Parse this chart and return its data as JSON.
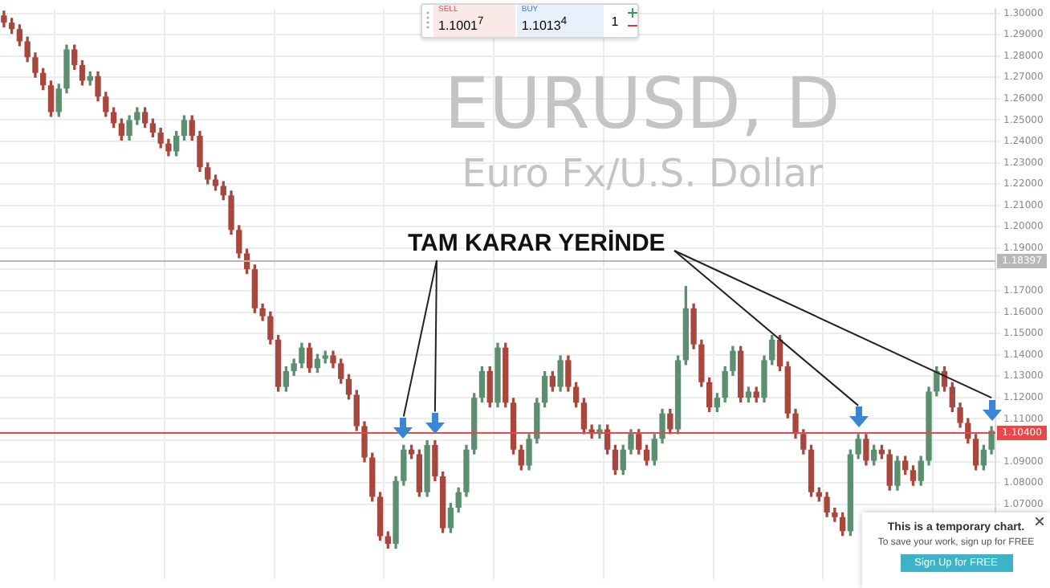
{
  "chart_data": {
    "type": "candlestick",
    "title": "EURUSD, D",
    "subtitle": "Euro Fx/U.S. Dollar",
    "annotations": [
      "TAM KARAR YERİNDE",
      "SELL",
      "1.1001$^{7}$",
      "BUY",
      "1.1013$^{4}$",
      "1",
      "This is a temporary chart.",
      "To save your work, sign up for FREE",
      "Sign Up for FREE"
    ],
    "categories": [
      null,
      null,
      null,
      null,
      null,
      null,
      null,
      null,
      null,
      null,
      null,
      null,
      null,
      null,
      null,
      null,
      null,
      null,
      null,
      null,
      null,
      null,
      null,
      null,
      null,
      null,
      null,
      null,
      null,
      null,
      null,
      null,
      null,
      null,
      null,
      null,
      null,
      null,
      null,
      null,
      null,
      null,
      null,
      null,
      null,
      null,
      null,
      null,
      null,
      null,
      null,
      null,
      null,
      null,
      null,
      null,
      null,
      null,
      null,
      null,
      null,
      null,
      null,
      null,
      null,
      null,
      null,
      null,
      null,
      null,
      null,
      null,
      null,
      null,
      null,
      null,
      null,
      null,
      null,
      null,
      null,
      null,
      null,
      null,
      null,
      null,
      null,
      null,
      null,
      null,
      null,
      null,
      null,
      null,
      null,
      null,
      null,
      null,
      null,
      null,
      null,
      null,
      null,
      null,
      null,
      null,
      null,
      null,
      null,
      null,
      null,
      null,
      null,
      null,
      null,
      null,
      null,
      null,
      null,
      null,
      null,
      null,
      null,
      null,
      null,
      null,
      null
    ],
    "ohlc": [
      [
        1.299,
        1.301,
        1.2936,
        1.2956
      ],
      [
        1.2956,
        1.2976,
        1.2906,
        1.2926
      ],
      [
        1.2926,
        1.2946,
        1.2848,
        1.2868
      ],
      [
        1.2868,
        1.2888,
        1.2774,
        1.2794
      ],
      [
        1.2794,
        1.2814,
        1.2701,
        1.2721
      ],
      [
        1.2721,
        1.2741,
        1.2642,
        1.2662
      ],
      [
        1.2662,
        1.2682,
        1.2517,
        1.2537
      ],
      [
        1.2537,
        1.2667,
        1.2517,
        1.2647
      ],
      [
        1.2647,
        1.2851,
        1.2627,
        1.2831
      ],
      [
        1.2831,
        1.2851,
        1.2737,
        1.2757
      ],
      [
        1.2757,
        1.2777,
        1.2664,
        1.2684
      ],
      [
        1.2684,
        1.2726,
        1.2664,
        1.2706
      ],
      [
        1.2706,
        1.2726,
        1.259,
        1.261
      ],
      [
        1.261,
        1.263,
        1.2517,
        1.2537
      ],
      [
        1.2537,
        1.2557,
        1.2465,
        1.2485
      ],
      [
        1.2485,
        1.2505,
        1.2406,
        1.2426
      ],
      [
        1.2426,
        1.252,
        1.2406,
        1.25
      ],
      [
        1.25,
        1.2557,
        1.248,
        1.2537
      ],
      [
        1.2537,
        1.2557,
        1.2465,
        1.2485
      ],
      [
        1.2485,
        1.2505,
        1.2421,
        1.2441
      ],
      [
        1.2441,
        1.2461,
        1.237,
        1.239
      ],
      [
        1.239,
        1.241,
        1.2333,
        1.2353
      ],
      [
        1.2353,
        1.2446,
        1.2333,
        1.2426
      ],
      [
        1.2426,
        1.252,
        1.2406,
        1.25
      ],
      [
        1.25,
        1.252,
        1.2406,
        1.2426
      ],
      [
        1.2426,
        1.2446,
        1.2259,
        1.2279
      ],
      [
        1.2279,
        1.2299,
        1.2201,
        1.2221
      ],
      [
        1.2221,
        1.2241,
        1.2171,
        1.2191
      ],
      [
        1.2191,
        1.2211,
        1.2127,
        1.2147
      ],
      [
        1.2147,
        1.2167,
        1.1965,
        1.1985
      ],
      [
        1.1985,
        1.2005,
        1.1855,
        1.1875
      ],
      [
        1.1875,
        1.1895,
        1.1781,
        1.1801
      ],
      [
        1.1801,
        1.1821,
        1.1598,
        1.1618
      ],
      [
        1.1618,
        1.1638,
        1.1561,
        1.1581
      ],
      [
        1.1581,
        1.1601,
        1.1451,
        1.1471
      ],
      [
        1.1471,
        1.1491,
        1.123,
        1.125
      ],
      [
        1.125,
        1.1344,
        1.123,
        1.1324
      ],
      [
        1.1324,
        1.138,
        1.1304,
        1.136
      ],
      [
        1.136,
        1.1454,
        1.134,
        1.1434
      ],
      [
        1.1434,
        1.1454,
        1.1318,
        1.1338
      ],
      [
        1.1338,
        1.1402,
        1.1318,
        1.1382
      ],
      [
        1.1382,
        1.1417,
        1.1362,
        1.1397
      ],
      [
        1.1397,
        1.1417,
        1.134,
        1.136
      ],
      [
        1.136,
        1.138,
        1.1267,
        1.1287
      ],
      [
        1.1287,
        1.1307,
        1.1193,
        1.1213
      ],
      [
        1.1213,
        1.1233,
        1.1046,
        1.1066
      ],
      [
        1.1066,
        1.1086,
        1.0899,
        1.0919
      ],
      [
        1.0919,
        1.0939,
        1.0715,
        1.0735
      ],
      [
        1.0735,
        1.0755,
        1.0531,
        1.0551
      ],
      [
        1.0551,
        1.0571,
        1.0495,
        1.0515
      ],
      [
        1.0515,
        1.0829,
        1.0495,
        1.0809
      ],
      [
        1.0809,
        1.0976,
        1.0789,
        1.0956
      ],
      [
        1.0956,
        1.0976,
        1.0914,
        1.0934
      ],
      [
        1.0934,
        1.0954,
        1.0737,
        1.0757
      ],
      [
        1.0757,
        1.0998,
        1.0737,
        1.0978
      ],
      [
        1.0978,
        1.0998,
        1.0811,
        1.0831
      ],
      [
        1.0831,
        1.0851,
        1.0568,
        1.0588
      ],
      [
        1.0588,
        1.0704,
        1.0568,
        1.0684
      ],
      [
        1.0684,
        1.0777,
        1.0664,
        1.0757
      ],
      [
        1.0757,
        1.0976,
        1.0737,
        1.0956
      ],
      [
        1.0956,
        1.1219,
        1.0936,
        1.1199
      ],
      [
        1.1199,
        1.1344,
        1.1179,
        1.1324
      ],
      [
        1.1324,
        1.1344,
        1.1156,
        1.1176
      ],
      [
        1.1176,
        1.1454,
        1.1156,
        1.1434
      ],
      [
        1.1434,
        1.1454,
        1.1156,
        1.1176
      ],
      [
        1.1176,
        1.1196,
        1.0936,
        1.0956
      ],
      [
        1.0956,
        1.0976,
        1.0862,
        1.0882
      ],
      [
        1.0882,
        1.1027,
        1.0862,
        1.1007
      ],
      [
        1.1007,
        1.1196,
        1.0987,
        1.1176
      ],
      [
        1.1176,
        1.1321,
        1.1156,
        1.1301
      ],
      [
        1.1301,
        1.1321,
        1.123,
        1.125
      ],
      [
        1.125,
        1.1395,
        1.123,
        1.1375
      ],
      [
        1.1375,
        1.1395,
        1.123,
        1.125
      ],
      [
        1.125,
        1.127,
        1.1156,
        1.1176
      ],
      [
        1.1176,
        1.1196,
        1.1031,
        1.1051
      ],
      [
        1.1051,
        1.1071,
        1.1009,
        1.1029
      ],
      [
        1.1029,
        1.1071,
        1.1009,
        1.1051
      ],
      [
        1.1051,
        1.1071,
        1.0936,
        1.0956
      ],
      [
        1.0956,
        1.0976,
        1.084,
        1.086
      ],
      [
        1.086,
        1.0976,
        1.084,
        1.0956
      ],
      [
        1.0956,
        1.1049,
        1.0936,
        1.1029
      ],
      [
        1.1029,
        1.1049,
        1.0936,
        1.0956
      ],
      [
        1.0956,
        1.0976,
        1.0884,
        1.0904
      ],
      [
        1.0904,
        1.1027,
        1.0884,
        1.1007
      ],
      [
        1.1007,
        1.1145,
        1.0987,
        1.1125
      ],
      [
        1.1125,
        1.1145,
        1.1031,
        1.1051
      ],
      [
        1.1051,
        1.1395,
        1.1031,
        1.1375
      ],
      [
        1.1375,
        1.172,
        1.1355,
        1.1618
      ],
      [
        1.1618,
        1.1638,
        1.1429,
        1.1449
      ],
      [
        1.1449,
        1.1469,
        1.1252,
        1.1272
      ],
      [
        1.1272,
        1.1292,
        1.1134,
        1.1154
      ],
      [
        1.1154,
        1.1219,
        1.1134,
        1.1199
      ],
      [
        1.1199,
        1.1344,
        1.1179,
        1.1324
      ],
      [
        1.1324,
        1.1439,
        1.1304,
        1.1419
      ],
      [
        1.1419,
        1.1439,
        1.1179,
        1.1199
      ],
      [
        1.1199,
        1.1248,
        1.1179,
        1.1228
      ],
      [
        1.1228,
        1.1248,
        1.1179,
        1.1199
      ],
      [
        1.1199,
        1.1395,
        1.1179,
        1.1375
      ],
      [
        1.1375,
        1.1491,
        1.1355,
        1.1471
      ],
      [
        1.1471,
        1.1491,
        1.1326,
        1.1346
      ],
      [
        1.1346,
        1.1366,
        1.1105,
        1.1125
      ],
      [
        1.1125,
        1.1145,
        1.1009,
        1.1029
      ],
      [
        1.1029,
        1.1049,
        1.0936,
        1.0956
      ],
      [
        1.0956,
        1.0976,
        1.0737,
        1.0757
      ],
      [
        1.0757,
        1.0777,
        1.0715,
        1.0735
      ],
      [
        1.0735,
        1.0755,
        1.0642,
        1.0662
      ],
      [
        1.0662,
        1.0682,
        1.062,
        1.064
      ],
      [
        1.064,
        1.066,
        1.0554,
        1.0574
      ],
      [
        1.0574,
        1.0954,
        1.0554,
        1.0934
      ],
      [
        1.0934,
        1.1027,
        1.0914,
        1.1007
      ],
      [
        1.1007,
        1.1027,
        1.0884,
        1.0904
      ],
      [
        1.0904,
        1.0976,
        1.0884,
        1.0956
      ],
      [
        1.0956,
        1.0976,
        1.0914,
        1.0934
      ],
      [
        1.0934,
        1.0954,
        1.0767,
        1.0787
      ],
      [
        1.0787,
        1.0924,
        1.0767,
        1.0904
      ],
      [
        1.0904,
        1.0924,
        1.084,
        1.086
      ],
      [
        1.086,
        1.088,
        1.0789,
        1.0809
      ],
      [
        1.0809,
        1.0924,
        1.0789,
        1.0904
      ],
      [
        1.0904,
        1.1248,
        1.0884,
        1.1228
      ],
      [
        1.1228,
        1.1344,
        1.1208,
        1.1324
      ],
      [
        1.1324,
        1.1344,
        1.123,
        1.125
      ],
      [
        1.125,
        1.127,
        1.1134,
        1.1154
      ],
      [
        1.1154,
        1.1174,
        1.1061,
        1.1081
      ],
      [
        1.1081,
        1.1101,
        1.0987,
        1.1007
      ],
      [
        1.1007,
        1.1027,
        1.0862,
        1.0882
      ],
      [
        1.0882,
        1.0976,
        1.0862,
        1.0956
      ],
      [
        1.0956,
        1.1064,
        1.0936,
        1.1044
      ]
    ],
    "ylim": [
      1.035,
      1.302
    ],
    "yticks": [
      {
        "value": 1.07,
        "label": "1.07000"
      },
      {
        "value": 1.08,
        "label": "1.08000"
      },
      {
        "value": 1.09,
        "label": "1.09000"
      },
      {
        "value": 1.1,
        "label": null
      },
      {
        "value": 1.11,
        "label": "1.11000"
      },
      {
        "value": 1.12,
        "label": "1.12000"
      },
      {
        "value": 1.13,
        "label": "1.13000"
      },
      {
        "value": 1.14,
        "label": "1.14000"
      },
      {
        "value": 1.15,
        "label": "1.15000"
      },
      {
        "value": 1.16,
        "label": "1.16000"
      },
      {
        "value": 1.17,
        "label": "1.17000"
      },
      {
        "value": 1.18,
        "label": null
      },
      {
        "value": 1.19,
        "label": "1.19000"
      },
      {
        "value": 1.2,
        "label": "1.20000"
      },
      {
        "value": 1.21,
        "label": "1.21000"
      },
      {
        "value": 1.22,
        "label": "1.22000"
      },
      {
        "value": 1.23,
        "label": "1.23000"
      },
      {
        "value": 1.24,
        "label": "1.24000"
      },
      {
        "value": 1.25,
        "label": "1.25000"
      },
      {
        "value": 1.26,
        "label": "1.26000"
      },
      {
        "value": 1.27,
        "label": "1.27000"
      },
      {
        "value": 1.28,
        "label": "1.28000"
      },
      {
        "value": 1.29,
        "label": "1.29000"
      },
      {
        "value": 1.3,
        "label": "1.30000"
      }
    ],
    "ref_lines": [
      {
        "axis": "y",
        "value": 1.104,
        "label": "1.10400",
        "color": "#e8484a"
      },
      {
        "axis": "y",
        "value": 1.18397,
        "label": "1.18397",
        "color": "#b8b8b8"
      }
    ],
    "grid": true,
    "tick_labels": "y",
    "legend": false
  }
}
